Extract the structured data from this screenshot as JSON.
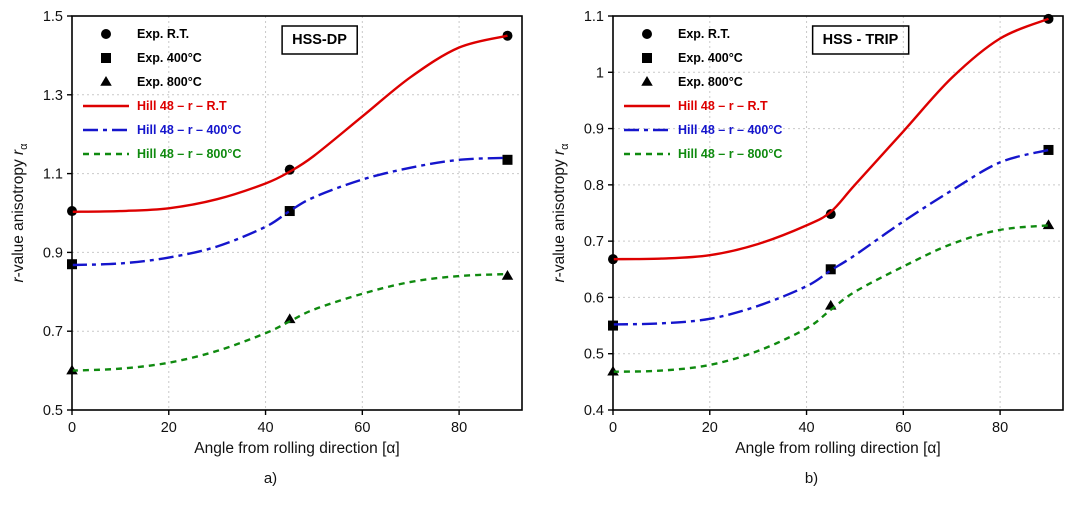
{
  "chart_data": [
    {
      "type": "line",
      "caption": "a)",
      "title": "HSS-DP",
      "xlabel": "Angle from rolling direction [α]",
      "ylabel": {
        "lead_italic": "r",
        "text": "-value anisotropy ",
        "tail_italic": "r",
        "subscript": "α"
      },
      "xlim": [
        0,
        93
      ],
      "ylim": [
        0.5,
        1.5
      ],
      "xticks": [
        0,
        20,
        40,
        60,
        80
      ],
      "yticks": [
        "0.5",
        "0.7",
        "0.9",
        "1.1",
        "1.3",
        "1.5"
      ],
      "grid": true,
      "legend_position": "top-left",
      "series": [
        {
          "name": "Exp. R.T.",
          "kind": "scatter",
          "marker": "circle",
          "color": "#000000",
          "x": [
            0,
            45,
            90
          ],
          "y": [
            1.005,
            1.11,
            1.45
          ]
        },
        {
          "name": "Exp. 400°C",
          "kind": "scatter",
          "marker": "square",
          "color": "#000000",
          "x": [
            0,
            45,
            90
          ],
          "y": [
            0.87,
            1.005,
            1.135
          ]
        },
        {
          "name": "Exp. 800°C",
          "kind": "scatter",
          "marker": "triangle",
          "color": "#000000",
          "x": [
            0,
            45,
            90
          ],
          "y": [
            0.6,
            0.73,
            0.84
          ]
        },
        {
          "name": "Hill 48 – r – R.T",
          "kind": "line",
          "dash": "solid",
          "color": "#dd0000",
          "x": [
            0,
            10,
            20,
            30,
            40,
            45,
            50,
            60,
            70,
            80,
            90
          ],
          "y": [
            1.003,
            1.005,
            1.012,
            1.035,
            1.075,
            1.105,
            1.145,
            1.245,
            1.345,
            1.42,
            1.45
          ]
        },
        {
          "name": "Hill 48 – r – 400°C",
          "kind": "line",
          "dash": "dashdot",
          "color": "#1515cc",
          "x": [
            0,
            10,
            20,
            30,
            40,
            45,
            50,
            60,
            70,
            80,
            90
          ],
          "y": [
            0.868,
            0.872,
            0.887,
            0.915,
            0.965,
            1.005,
            1.04,
            1.085,
            1.115,
            1.135,
            1.14
          ]
        },
        {
          "name": "Hill 48 – r – 800°C",
          "kind": "line",
          "dash": "dashed",
          "color": "#0f8a0f",
          "x": [
            0,
            10,
            20,
            30,
            40,
            45,
            50,
            60,
            70,
            80,
            90
          ],
          "y": [
            0.6,
            0.605,
            0.62,
            0.65,
            0.695,
            0.725,
            0.755,
            0.795,
            0.825,
            0.84,
            0.845
          ]
        }
      ]
    },
    {
      "type": "line",
      "caption": "b)",
      "title": "HSS - TRIP",
      "xlabel": "Angle from rolling direction [α]",
      "ylabel": {
        "lead_italic": "r",
        "text": "-value anisotropy ",
        "tail_italic": "r",
        "subscript": "α"
      },
      "xlim": [
        0,
        93
      ],
      "ylim": [
        0.4,
        1.1
      ],
      "xticks": [
        0,
        20,
        40,
        60,
        80
      ],
      "yticks": [
        "0.4",
        "0.5",
        "0.6",
        "0.7",
        "0.8",
        "0.9",
        "1",
        "1.1"
      ],
      "grid": true,
      "legend_position": "top-left",
      "series": [
        {
          "name": "Exp. R.T.",
          "kind": "scatter",
          "marker": "circle",
          "color": "#000000",
          "x": [
            0,
            45,
            90
          ],
          "y": [
            0.668,
            0.748,
            1.095
          ]
        },
        {
          "name": "Exp. 400°C",
          "kind": "scatter",
          "marker": "square",
          "color": "#000000",
          "x": [
            0,
            45,
            90
          ],
          "y": [
            0.55,
            0.65,
            0.862
          ]
        },
        {
          "name": "Exp. 800°C",
          "kind": "scatter",
          "marker": "triangle",
          "color": "#000000",
          "x": [
            0,
            45,
            90
          ],
          "y": [
            0.468,
            0.585,
            0.728
          ]
        },
        {
          "name": "Hill 48 – r – R.T",
          "kind": "line",
          "dash": "solid",
          "color": "#dd0000",
          "x": [
            0,
            10,
            20,
            30,
            40,
            45,
            50,
            60,
            70,
            80,
            90
          ],
          "y": [
            0.668,
            0.669,
            0.675,
            0.695,
            0.728,
            0.752,
            0.8,
            0.895,
            0.99,
            1.06,
            1.095
          ]
        },
        {
          "name": "Hill 48 – r – 400°C",
          "kind": "line",
          "dash": "dashdot",
          "color": "#1515cc",
          "x": [
            0,
            10,
            20,
            30,
            40,
            45,
            50,
            60,
            70,
            80,
            90
          ],
          "y": [
            0.552,
            0.554,
            0.562,
            0.585,
            0.62,
            0.648,
            0.675,
            0.735,
            0.79,
            0.84,
            0.862
          ]
        },
        {
          "name": "Hill 48 – r – 800°C",
          "kind": "line",
          "dash": "dashed",
          "color": "#0f8a0f",
          "x": [
            0,
            10,
            20,
            30,
            40,
            45,
            50,
            60,
            70,
            80,
            90
          ],
          "y": [
            0.468,
            0.47,
            0.48,
            0.505,
            0.545,
            0.578,
            0.61,
            0.655,
            0.695,
            0.72,
            0.728
          ]
        }
      ]
    }
  ]
}
